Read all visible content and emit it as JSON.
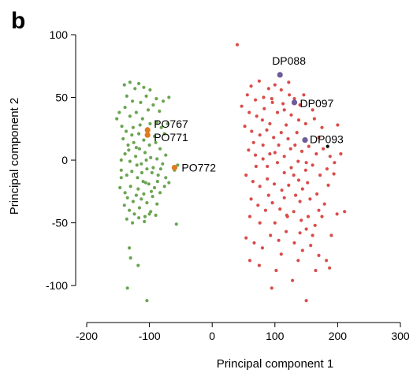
{
  "panel_label": "b",
  "chart_data": {
    "type": "scatter",
    "title": "",
    "xlabel": "Principal component 1",
    "ylabel": "Principal component 2",
    "xlim": [
      -200,
      300
    ],
    "ylim": [
      -110,
      100
    ],
    "xticks": [
      -200,
      -100,
      0,
      100,
      200,
      300
    ],
    "xtick_labels": [
      "-200",
      "-100",
      "0",
      "100",
      "200",
      "300"
    ],
    "yticks": [
      100,
      50,
      0,
      -50,
      -100
    ],
    "ytick_labels": [
      "100",
      "50",
      "0",
      "-50",
      "-100"
    ],
    "grid": false,
    "legend": "none",
    "series": [
      {
        "color": "#6aa551",
        "points": [
          [
            -140,
            60
          ],
          [
            -131,
            62
          ],
          [
            -123,
            57
          ],
          [
            -117,
            61
          ],
          [
            -109,
            58
          ],
          [
            -99,
            56
          ],
          [
            -89,
            49
          ],
          [
            -78,
            47
          ],
          [
            -69,
            50
          ],
          [
            -136,
            51
          ],
          [
            -127,
            47
          ],
          [
            -114,
            46
          ],
          [
            -105,
            51
          ],
          [
            -94,
            44
          ],
          [
            -84,
            39
          ],
          [
            -148,
            38
          ],
          [
            -139,
            42
          ],
          [
            -131,
            35
          ],
          [
            -121,
            38
          ],
          [
            -111,
            33
          ],
          [
            -99,
            29
          ],
          [
            -88,
            30
          ],
          [
            -81,
            26
          ],
          [
            -76,
            21
          ],
          [
            -71,
            29
          ],
          [
            -152,
            33
          ],
          [
            -144,
            27
          ],
          [
            -137,
            23
          ],
          [
            -126,
            26
          ],
          [
            -117,
            21
          ],
          [
            -109,
            16
          ],
          [
            -100,
            12
          ],
          [
            -90,
            14
          ],
          [
            -83,
            9
          ],
          [
            -74,
            4
          ],
          [
            -142,
            17
          ],
          [
            -134,
            12
          ],
          [
            -125,
            14
          ],
          [
            -116,
            9
          ],
          [
            -107,
            6
          ],
          [
            -98,
            2
          ],
          [
            -88,
            1
          ],
          [
            -79,
            -3
          ],
          [
            -139,
            5
          ],
          [
            -131,
            -1
          ],
          [
            -122,
            3
          ],
          [
            -113,
            -3
          ],
          [
            -104,
            -7
          ],
          [
            -96,
            -10
          ],
          [
            -86,
            -12
          ],
          [
            -145,
            -8
          ],
          [
            -136,
            -12
          ],
          [
            -128,
            -9
          ],
          [
            -119,
            -14
          ],
          [
            -110,
            -17
          ],
          [
            -101,
            -19
          ],
          [
            -92,
            -22
          ],
          [
            -83,
            -26
          ],
          [
            -76,
            -21
          ],
          [
            -147,
            -22
          ],
          [
            -139,
            -26
          ],
          [
            -130,
            -21
          ],
          [
            -121,
            -28
          ],
          [
            -113,
            -31
          ],
          [
            -104,
            -34
          ],
          [
            -95,
            -29
          ],
          [
            -88,
            -35
          ],
          [
            -140,
            -36
          ],
          [
            -132,
            -40
          ],
          [
            -124,
            -43
          ],
          [
            -116,
            -38
          ],
          [
            -107,
            -45
          ],
          [
            -98,
            -41
          ],
          [
            -90,
            -44
          ],
          [
            -136,
            -47
          ],
          [
            -127,
            -50
          ],
          [
            -117,
            -46
          ],
          [
            -108,
            -49
          ],
          [
            -100,
            -43
          ],
          [
            -145,
            -14
          ],
          [
            -120,
            -4
          ],
          [
            -105,
            0
          ],
          [
            -94,
            -6
          ],
          [
            -128,
            20
          ],
          [
            -115,
            28
          ],
          [
            -102,
            40
          ],
          [
            -145,
            0
          ],
          [
            -118,
            -23
          ],
          [
            -97,
            -25
          ],
          [
            -106,
            -18
          ],
          [
            -135,
            -30
          ],
          [
            -112,
            -10
          ],
          [
            -87,
            -17
          ],
          [
            -126,
            -33
          ],
          [
            -109,
            -27
          ],
          [
            -133,
            8
          ],
          [
            -121,
            10
          ],
          [
            -103,
            25
          ],
          [
            -92,
            19
          ],
          [
            -82,
            -7
          ],
          [
            -74,
            -14
          ],
          [
            -69,
            -18
          ],
          [
            -57,
            -51
          ],
          [
            -132,
            -70
          ],
          [
            -130,
            -78
          ],
          [
            -118,
            -84
          ],
          [
            -135,
            -102
          ],
          [
            -104,
            -112
          ],
          [
            -55,
            -4
          ],
          [
            -60,
            -8
          ]
        ]
      },
      {
        "color": "#d94c4a",
        "points": [
          [
            40,
            92
          ],
          [
            62,
            59
          ],
          [
            75,
            63
          ],
          [
            90,
            57
          ],
          [
            56,
            52
          ],
          [
            69,
            48
          ],
          [
            82,
            50
          ],
          [
            95,
            49
          ],
          [
            110,
            56
          ],
          [
            122,
            62
          ],
          [
            131,
            49
          ],
          [
            140,
            44
          ],
          [
            47,
            43
          ],
          [
            59,
            38
          ],
          [
            71,
            35
          ],
          [
            83,
            41
          ],
          [
            96,
            46
          ],
          [
            104,
            38
          ],
          [
            115,
            40
          ],
          [
            126,
            36
          ],
          [
            138,
            32
          ],
          [
            149,
            29
          ],
          [
            163,
            33
          ],
          [
            175,
            26
          ],
          [
            52,
            27
          ],
          [
            63,
            23
          ],
          [
            76,
            20
          ],
          [
            87,
            24
          ],
          [
            98,
            18
          ],
          [
            110,
            22
          ],
          [
            121,
            17
          ],
          [
            132,
            12
          ],
          [
            143,
            7
          ],
          [
            154,
            11
          ],
          [
            166,
            5
          ],
          [
            177,
            9
          ],
          [
            188,
            3
          ],
          [
            58,
            8
          ],
          [
            69,
            4
          ],
          [
            81,
            1
          ],
          [
            92,
            5
          ],
          [
            104,
            -2
          ],
          [
            115,
            3
          ],
          [
            126,
            -6
          ],
          [
            137,
            -1
          ],
          [
            149,
            -8
          ],
          [
            160,
            -4
          ],
          [
            172,
            -12
          ],
          [
            183,
            -7
          ],
          [
            194,
            -11
          ],
          [
            54,
            -12
          ],
          [
            65,
            -17
          ],
          [
            76,
            -21
          ],
          [
            88,
            -15
          ],
          [
            99,
            -19
          ],
          [
            111,
            -24
          ],
          [
            122,
            -20
          ],
          [
            133,
            -28
          ],
          [
            144,
            -23
          ],
          [
            156,
            -31
          ],
          [
            167,
            -27
          ],
          [
            179,
            -35
          ],
          [
            62,
            -31
          ],
          [
            73,
            -36
          ],
          [
            85,
            -40
          ],
          [
            96,
            -34
          ],
          [
            108,
            -39
          ],
          [
            119,
            -44
          ],
          [
            130,
            -41
          ],
          [
            142,
            -48
          ],
          [
            153,
            -45
          ],
          [
            164,
            -52
          ],
          [
            199,
            -43
          ],
          [
            211,
            -41
          ],
          [
            54,
            -62
          ],
          [
            67,
            -66
          ],
          [
            80,
            -70
          ],
          [
            93,
            -60
          ],
          [
            106,
            -64
          ],
          [
            118,
            -57
          ],
          [
            131,
            -66
          ],
          [
            144,
            -72
          ],
          [
            157,
            -68
          ],
          [
            170,
            -76
          ],
          [
            182,
            -80
          ],
          [
            60,
            -80
          ],
          [
            75,
            -84
          ],
          [
            102,
            -88
          ],
          [
            128,
            -96
          ],
          [
            150,
            -112
          ],
          [
            187,
            -86
          ],
          [
            92,
            29
          ],
          [
            118,
            28
          ],
          [
            135,
            22
          ],
          [
            100,
            6
          ],
          [
            88,
            -5
          ],
          [
            152,
            -18
          ],
          [
            125,
            9
          ],
          [
            140,
            -33
          ],
          [
            80,
            32
          ],
          [
            113,
            45
          ],
          [
            146,
            52
          ],
          [
            160,
            40
          ],
          [
            170,
            18
          ],
          [
            185,
            -20
          ],
          [
            195,
            -2
          ],
          [
            66,
            14
          ],
          [
            100,
            -50
          ],
          [
            140,
            -58
          ],
          [
            90,
            -28
          ],
          [
            130,
            -12
          ],
          [
            76,
            -50
          ],
          [
            160,
            -60
          ],
          [
            115,
            -10
          ],
          [
            150,
            -2
          ],
          [
            200,
            28
          ],
          [
            205,
            5
          ],
          [
            175,
            -45
          ],
          [
            106,
            12
          ],
          [
            70,
            -5
          ],
          [
            123,
            52
          ],
          [
            170,
            -40
          ],
          [
            137,
            -80
          ],
          [
            150,
            -55
          ],
          [
            110,
            -75
          ],
          [
            190,
            -60
          ],
          [
            115,
            -30
          ],
          [
            138,
            -16
          ],
          [
            81,
            12
          ],
          [
            120,
            -45
          ],
          [
            165,
            -88
          ],
          [
            95,
            -102
          ],
          [
            60,
            -45
          ],
          [
            100,
            60
          ]
        ]
      }
    ],
    "highlights": [
      {
        "label": "DP088",
        "x": 108,
        "y": 68,
        "color": "#6e5b9a"
      },
      {
        "label": "DP097",
        "x": 131,
        "y": 46,
        "color": "#6e5b9a"
      },
      {
        "label": "DP093",
        "x": 148,
        "y": 16,
        "color": "#6e5b9a"
      },
      {
        "label": "",
        "x": 184,
        "y": 11,
        "color": "#000000"
      },
      {
        "label": "PO767",
        "x": -103,
        "y": 24,
        "color": "#e07b1d"
      },
      {
        "label": "PO771",
        "x": -103,
        "y": 20,
        "color": "#e07b1d"
      },
      {
        "label": "PO772",
        "x": -60,
        "y": -6,
        "color": "#e07b1d"
      }
    ]
  }
}
